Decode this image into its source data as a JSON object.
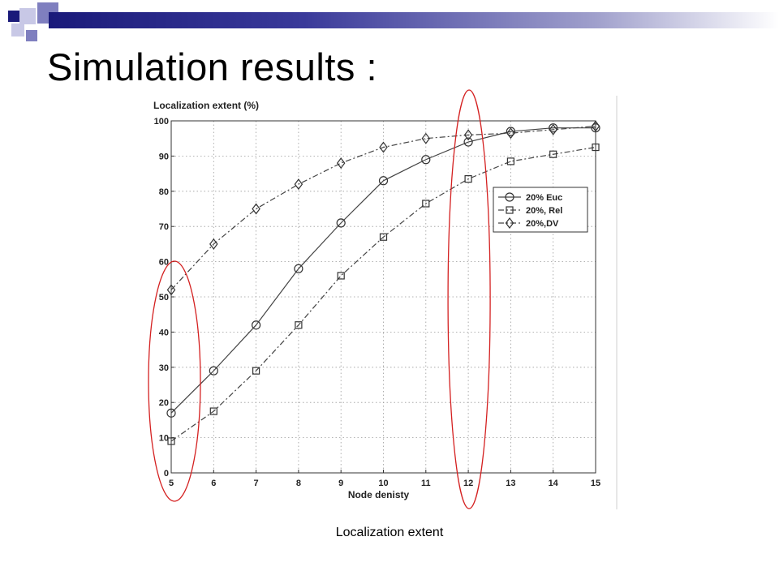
{
  "slide": {
    "title": "Simulation results :",
    "caption": "Localization extent",
    "accent_colors": {
      "header_dark": "#1a1a7a",
      "header_mid": "#7f7fbf",
      "header_light": "#c8c8e6",
      "highlight_ellipse": "#d42020"
    }
  },
  "chart_data": {
    "type": "line",
    "title": "",
    "xlabel": "Node denisty",
    "ylabel": "Localization extent (%)",
    "x": [
      5,
      6,
      7,
      8,
      9,
      10,
      11,
      12,
      13,
      14,
      15
    ],
    "xlim": [
      5,
      15
    ],
    "ylim": [
      0,
      100
    ],
    "xticks": [
      "5",
      "6",
      "7",
      "8",
      "9",
      "10",
      "11",
      "12",
      "13",
      "14",
      "15"
    ],
    "yticks": [
      "0",
      "10",
      "20",
      "30",
      "40",
      "50",
      "60",
      "70",
      "80",
      "90",
      "100"
    ],
    "grid": true,
    "legend_position": "right",
    "series": [
      {
        "name": "20% Euc",
        "marker": "circle",
        "line": "solid",
        "values": [
          17,
          29,
          42,
          58,
          71,
          83,
          89,
          94,
          97,
          98,
          98
        ]
      },
      {
        "name": "20%, Rel",
        "marker": "square",
        "line": "dashdot",
        "values": [
          9,
          17.5,
          29,
          42,
          56,
          67,
          76.5,
          83.5,
          88.5,
          90.5,
          92.5
        ]
      },
      {
        "name": "20%,DV",
        "marker": "diamond",
        "line": "dashdot",
        "values": [
          52,
          65,
          75,
          82,
          88,
          92.5,
          95,
          96,
          96.5,
          97.5,
          98.5
        ]
      }
    ],
    "highlights": [
      {
        "around_x": 5,
        "color": "#d42020"
      },
      {
        "around_x": 12,
        "color": "#d42020"
      }
    ]
  }
}
